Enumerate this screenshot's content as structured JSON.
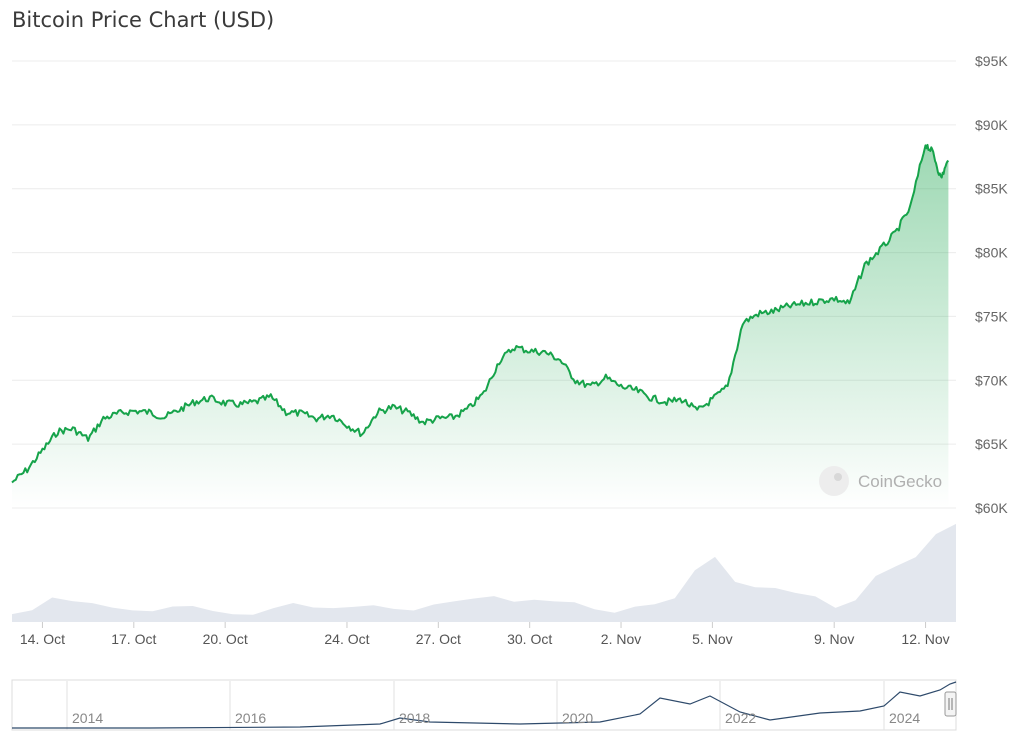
{
  "header": {
    "title": "Bitcoin Price Chart (USD)"
  },
  "watermark": "CoinGecko",
  "colors": {
    "line": "#16a34a",
    "volume": "#e3e7ee",
    "grid": "#ececec",
    "navigator_line": "#2e4a6b"
  },
  "chart_data": {
    "type": "area",
    "title": "Bitcoin Price Chart (USD)",
    "xlabel": "",
    "ylabel": "",
    "xlim": [
      "2024-10-13",
      "2024-11-13"
    ],
    "ylim": [
      60000,
      95000
    ],
    "yticks": [
      60000,
      65000,
      70000,
      75000,
      80000,
      85000,
      90000,
      95000
    ],
    "ytick_labels": [
      "$60K",
      "$65K",
      "$70K",
      "$75K",
      "$80K",
      "$85K",
      "$90K",
      "$95K"
    ],
    "xticks": [
      "2024-10-14",
      "2024-10-17",
      "2024-10-20",
      "2024-10-24",
      "2024-10-27",
      "2024-10-30",
      "2024-11-02",
      "2024-11-05",
      "2024-11-09",
      "2024-11-12"
    ],
    "xtick_labels": [
      "14. Oct",
      "17. Oct",
      "20. Oct",
      "24. Oct",
      "27. Oct",
      "30. Oct",
      "2. Nov",
      "5. Nov",
      "9. Nov",
      "12. Nov"
    ],
    "grid": true,
    "y_axis_position": "right",
    "price_series": [
      [
        "2024-10-13",
        62000
      ],
      [
        "2024-10-13T12",
        63000
      ],
      [
        "2024-10-14",
        64500
      ],
      [
        "2024-10-14T12",
        66000
      ],
      [
        "2024-10-15",
        66200
      ],
      [
        "2024-10-15T12",
        65400
      ],
      [
        "2024-10-16",
        67000
      ],
      [
        "2024-10-16T12",
        67400
      ],
      [
        "2024-10-17",
        67600
      ],
      [
        "2024-10-17T12",
        67500
      ],
      [
        "2024-10-18",
        67100
      ],
      [
        "2024-10-18T12",
        67700
      ],
      [
        "2024-10-19",
        68300
      ],
      [
        "2024-10-19T12",
        68600
      ],
      [
        "2024-10-20",
        68200
      ],
      [
        "2024-10-20T12",
        68100
      ],
      [
        "2024-10-21",
        68300
      ],
      [
        "2024-10-21T12",
        68700
      ],
      [
        "2024-10-22",
        67500
      ],
      [
        "2024-10-22T12",
        67400
      ],
      [
        "2024-10-23",
        67000
      ],
      [
        "2024-10-23T12",
        67300
      ],
      [
        "2024-10-24",
        66500
      ],
      [
        "2024-10-24T12",
        65800
      ],
      [
        "2024-10-25",
        67500
      ],
      [
        "2024-10-25T12",
        67900
      ],
      [
        "2024-10-26",
        67500
      ],
      [
        "2024-10-26T12",
        66700
      ],
      [
        "2024-10-27",
        67000
      ],
      [
        "2024-10-27T12",
        67100
      ],
      [
        "2024-10-28",
        67800
      ],
      [
        "2024-10-28T12",
        69000
      ],
      [
        "2024-10-29",
        71500
      ],
      [
        "2024-10-29T12",
        72600
      ],
      [
        "2024-10-30",
        72300
      ],
      [
        "2024-10-30T12",
        72200
      ],
      [
        "2024-10-31",
        71600
      ],
      [
        "2024-10-31T12",
        70000
      ],
      [
        "2024-11-01",
        69500
      ],
      [
        "2024-11-01T12",
        70200
      ],
      [
        "2024-11-02",
        69500
      ],
      [
        "2024-11-02T12",
        69200
      ],
      [
        "2024-11-03",
        68600
      ],
      [
        "2024-11-03T12",
        68300
      ],
      [
        "2024-11-04",
        68500
      ],
      [
        "2024-11-04T12",
        67600
      ],
      [
        "2024-11-05",
        68500
      ],
      [
        "2024-11-05T12",
        69500
      ],
      [
        "2024-11-06",
        74500
      ],
      [
        "2024-11-06T12",
        75200
      ],
      [
        "2024-11-07",
        75400
      ],
      [
        "2024-11-07T12",
        75800
      ],
      [
        "2024-11-08",
        76000
      ],
      [
        "2024-11-08T12",
        76200
      ],
      [
        "2024-11-09",
        76400
      ],
      [
        "2024-11-09T12",
        76000
      ],
      [
        "2024-11-10",
        79000
      ],
      [
        "2024-11-10T12",
        80200
      ],
      [
        "2024-11-11",
        81500
      ],
      [
        "2024-11-11T12",
        83500
      ],
      [
        "2024-11-12",
        88500
      ],
      [
        "2024-11-12T06",
        87800
      ],
      [
        "2024-11-12T12",
        85800
      ],
      [
        "2024-11-12T18",
        87200
      ]
    ]
  },
  "navigator": {
    "year_labels": [
      "2014",
      "2016",
      "2018",
      "2020",
      "2022",
      "2024"
    ]
  }
}
